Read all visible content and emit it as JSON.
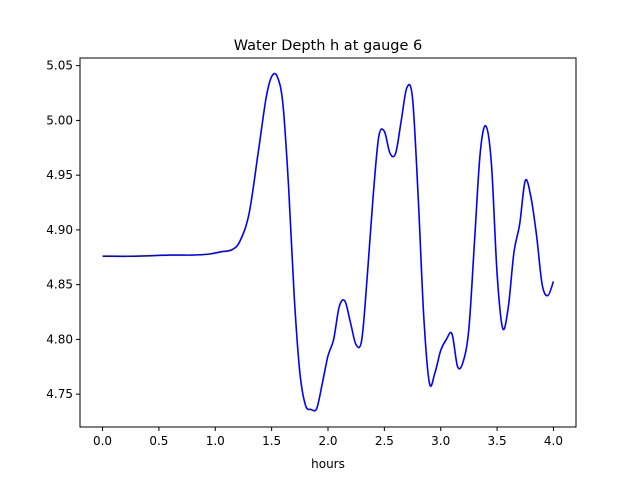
{
  "chart_data": {
    "type": "line",
    "title": "Water Depth h at gauge 6",
    "xlabel": "hours",
    "ylabel": "",
    "xlim": [
      -0.2,
      4.2
    ],
    "ylim": [
      4.72,
      5.057
    ],
    "x_ticks": [
      {
        "value": 0.0,
        "label": "0.0"
      },
      {
        "value": 0.5,
        "label": "0.5"
      },
      {
        "value": 1.0,
        "label": "1.0"
      },
      {
        "value": 1.5,
        "label": "1.5"
      },
      {
        "value": 2.0,
        "label": "2.0"
      },
      {
        "value": 2.5,
        "label": "2.5"
      },
      {
        "value": 3.0,
        "label": "3.0"
      },
      {
        "value": 3.5,
        "label": "3.5"
      },
      {
        "value": 4.0,
        "label": "4.0"
      }
    ],
    "y_ticks": [
      {
        "value": 4.75,
        "label": "4.75"
      },
      {
        "value": 4.8,
        "label": "4.80"
      },
      {
        "value": 4.85,
        "label": "4.85"
      },
      {
        "value": 4.9,
        "label": "4.90"
      },
      {
        "value": 4.95,
        "label": "4.95"
      },
      {
        "value": 5.0,
        "label": "5.00"
      },
      {
        "value": 5.05,
        "label": "5.05"
      }
    ],
    "grid": false,
    "legend": "none",
    "series": [
      {
        "color": "#0000ff",
        "x": [
          0.0,
          0.3,
          0.6,
          0.8,
          0.95,
          1.05,
          1.15,
          1.22,
          1.3,
          1.38,
          1.45,
          1.5,
          1.55,
          1.6,
          1.65,
          1.7,
          1.75,
          1.8,
          1.85,
          1.9,
          1.95,
          2.0,
          2.05,
          2.1,
          2.15,
          2.2,
          2.25,
          2.3,
          2.35,
          2.4,
          2.45,
          2.5,
          2.55,
          2.6,
          2.65,
          2.7,
          2.75,
          2.8,
          2.85,
          2.9,
          2.95,
          3.0,
          3.05,
          3.1,
          3.15,
          3.2,
          3.25,
          3.3,
          3.35,
          3.4,
          3.45,
          3.5,
          3.55,
          3.6,
          3.65,
          3.7,
          3.75,
          3.8,
          3.85,
          3.9,
          3.95,
          4.0
        ],
        "y": [
          4.876,
          4.876,
          4.877,
          4.877,
          4.878,
          4.88,
          4.882,
          4.89,
          4.915,
          4.97,
          5.02,
          5.04,
          5.04,
          5.015,
          4.94,
          4.84,
          4.77,
          4.74,
          4.736,
          4.737,
          4.76,
          4.785,
          4.8,
          4.83,
          4.835,
          4.815,
          4.795,
          4.8,
          4.86,
          4.93,
          4.985,
          4.99,
          4.97,
          4.97,
          5.0,
          5.03,
          5.02,
          4.93,
          4.82,
          4.76,
          4.77,
          4.79,
          4.8,
          4.805,
          4.775,
          4.78,
          4.81,
          4.89,
          4.97,
          4.995,
          4.96,
          4.86,
          4.81,
          4.83,
          4.88,
          4.905,
          4.945,
          4.93,
          4.895,
          4.85,
          4.84,
          4.853
        ]
      }
    ]
  }
}
